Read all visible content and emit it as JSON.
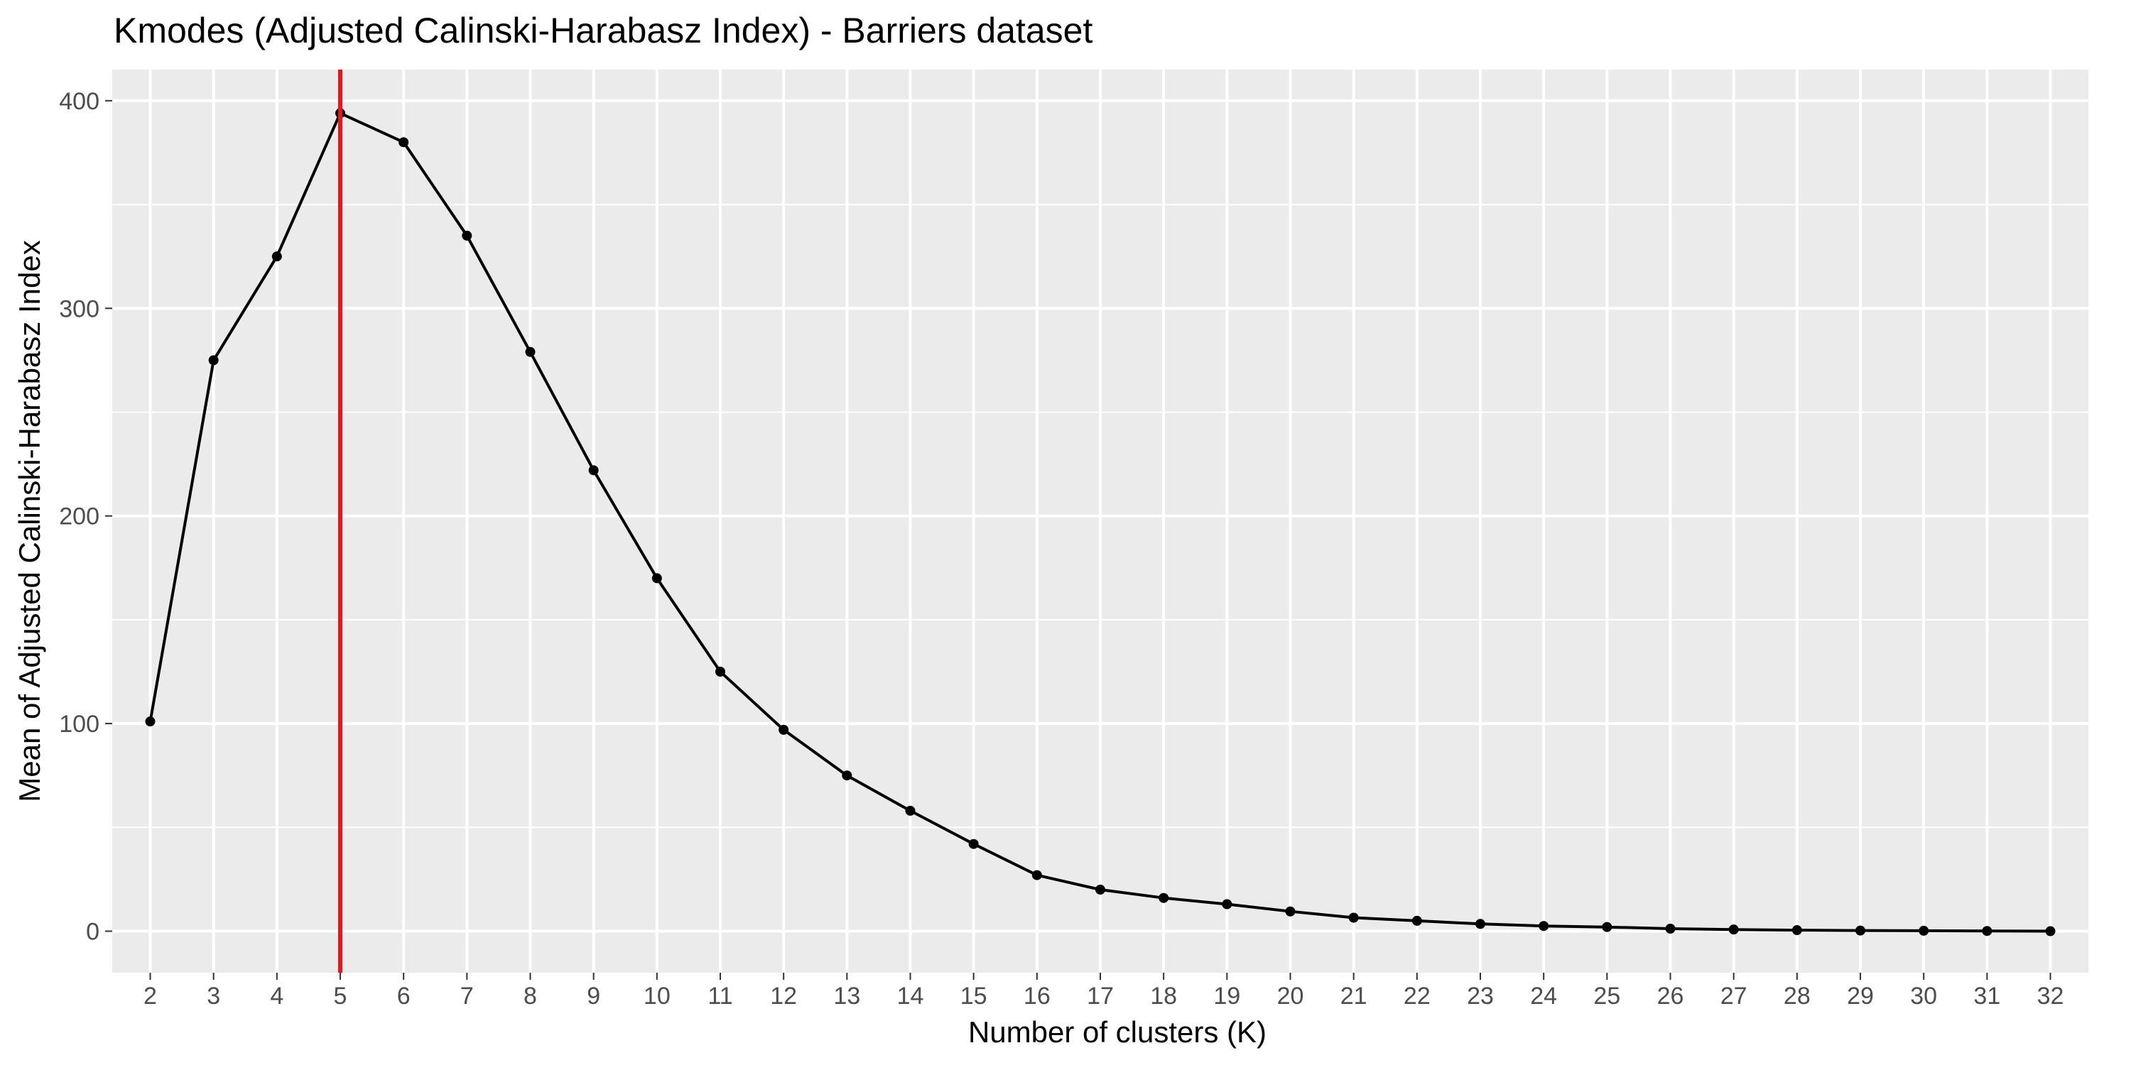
{
  "chart_data": {
    "type": "line",
    "title": "Kmodes (Adjusted Calinski-Harabasz Index) - Barriers dataset",
    "xlabel": "Number of clusters (K)",
    "ylabel": "Mean of Adjusted Calinski-Harabasz Index",
    "x": [
      2,
      3,
      4,
      5,
      6,
      7,
      8,
      9,
      10,
      11,
      12,
      13,
      14,
      15,
      16,
      17,
      18,
      19,
      20,
      21,
      22,
      23,
      24,
      25,
      26,
      27,
      28,
      29,
      30,
      31,
      32
    ],
    "y": [
      101,
      275,
      325,
      394,
      380,
      335,
      279,
      222,
      170,
      125,
      97,
      75,
      58,
      42,
      27,
      20,
      16,
      13,
      9.5,
      6.5,
      5,
      3.5,
      2.5,
      2,
      1.2,
      0.8,
      0.5,
      0.3,
      0.2,
      0.1,
      0
    ],
    "xlim": [
      1.4,
      32.6
    ],
    "ylim": [
      -20,
      415
    ],
    "xticks": [
      2,
      3,
      4,
      5,
      6,
      7,
      8,
      9,
      10,
      11,
      12,
      13,
      14,
      15,
      16,
      17,
      18,
      19,
      20,
      21,
      22,
      23,
      24,
      25,
      26,
      27,
      28,
      29,
      30,
      31,
      32
    ],
    "yticks": [
      0,
      100,
      200,
      300,
      400
    ],
    "vline": {
      "x": 5,
      "color": "#e8151b"
    },
    "line_color": "#000000",
    "panel_background": "#ebebeb",
    "grid_color": "#ffffff",
    "grid": true,
    "legend": "none"
  }
}
